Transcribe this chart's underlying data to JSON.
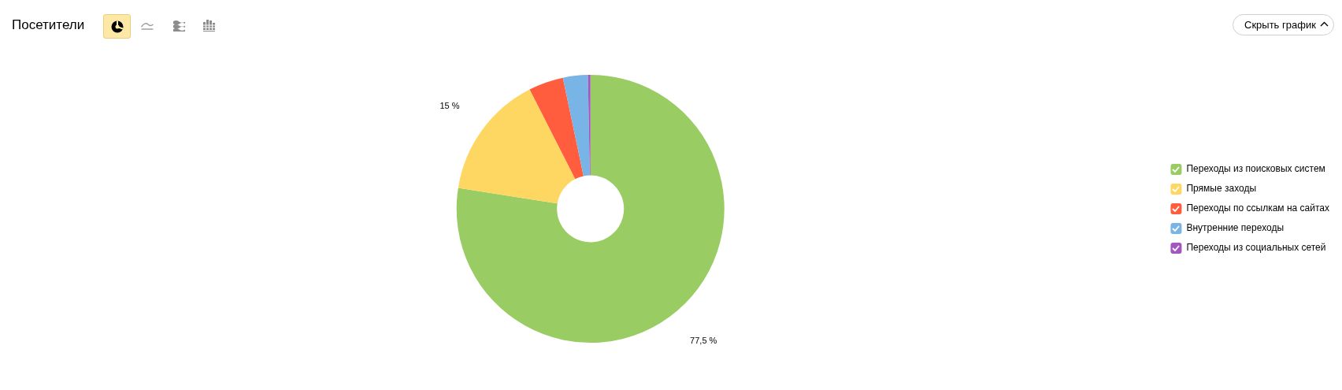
{
  "chart_data": {
    "type": "donut",
    "title": "Посетители",
    "categories": [
      "Переходы из поисковых систем",
      "Прямые заходы",
      "Переходы по ссылкам на сайтах",
      "Внутренние переходы",
      "Переходы из социальных сетей"
    ],
    "values": [
      77.5,
      15,
      4.2,
      3.0,
      0.3
    ],
    "colors": [
      "#99cc62",
      "#fed762",
      "#ff5d3d",
      "#79b4e6",
      "#a355c0"
    ],
    "value_labels": [
      "77,5 %",
      "15 %",
      null,
      null,
      null
    ],
    "legend": "right",
    "annotations": [
      "Скрыть график"
    ]
  }
}
